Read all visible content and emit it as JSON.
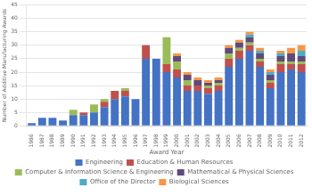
{
  "chart_data": {
    "type": "bar",
    "stacked": true,
    "xlabel": "Award Year",
    "ylabel": "Number of Additive Manufacturing Awards",
    "categories": [
      "1986",
      "1987",
      "1988",
      "1989",
      "1990",
      "1991",
      "1992",
      "1993",
      "1994",
      "1995",
      "1996",
      "1997",
      "1998",
      "1999",
      "2000",
      "2001",
      "2002",
      "2003",
      "2004",
      "2005",
      "2006",
      "2007",
      "2008",
      "2009",
      "2010",
      "2011",
      "2012"
    ],
    "series": [
      {
        "name": "Engineering",
        "color": "#4472C4",
        "values": [
          1,
          3,
          3,
          2,
          4,
          4,
          5,
          7,
          10,
          11,
          10,
          25,
          25,
          20,
          18,
          13,
          13,
          12,
          13,
          22,
          25,
          28,
          22,
          14,
          20,
          21,
          20
        ]
      },
      {
        "name": "Education & Human Resources",
        "color": "#C0504D",
        "values": [
          0,
          0,
          0,
          0,
          0,
          1,
          0,
          2,
          3,
          2,
          0,
          5,
          0,
          3,
          3,
          2,
          2,
          2,
          2,
          3,
          3,
          2,
          2,
          2,
          3,
          2,
          3
        ]
      },
      {
        "name": "Computer & Information Science & Engineering",
        "color": "#9BBB59",
        "values": [
          0,
          0,
          0,
          0,
          2,
          0,
          3,
          1,
          0,
          1,
          0,
          0,
          0,
          10,
          3,
          2,
          0,
          1,
          1,
          2,
          1,
          1,
          1,
          1,
          1,
          1,
          1
        ]
      },
      {
        "name": "Mathematical & Physical Sciences",
        "color": "#604A7B",
        "values": [
          0,
          0,
          0,
          0,
          0,
          0,
          0,
          0,
          0,
          0,
          0,
          0,
          0,
          0,
          2,
          2,
          2,
          1,
          1,
          2,
          2,
          2,
          2,
          2,
          2,
          3,
          2
        ]
      },
      {
        "name": "Office of the Director",
        "color": "#4BACC6",
        "values": [
          0,
          0,
          0,
          0,
          0,
          0,
          0,
          0,
          0,
          0,
          0,
          0,
          0,
          0,
          0,
          0,
          0,
          0,
          0,
          0,
          0,
          1,
          1,
          1,
          1,
          0,
          2
        ]
      },
      {
        "name": "Biological Sciences",
        "color": "#F79646",
        "values": [
          0,
          0,
          0,
          0,
          0,
          0,
          0,
          0,
          0,
          0,
          0,
          0,
          0,
          0,
          1,
          1,
          1,
          1,
          1,
          1,
          1,
          1,
          1,
          1,
          1,
          2,
          2
        ]
      }
    ],
    "ylim": [
      0,
      45
    ],
    "yticks": [
      0,
      5,
      10,
      15,
      20,
      25,
      30,
      35,
      40,
      45
    ],
    "grid": true,
    "legend": "bottom"
  }
}
